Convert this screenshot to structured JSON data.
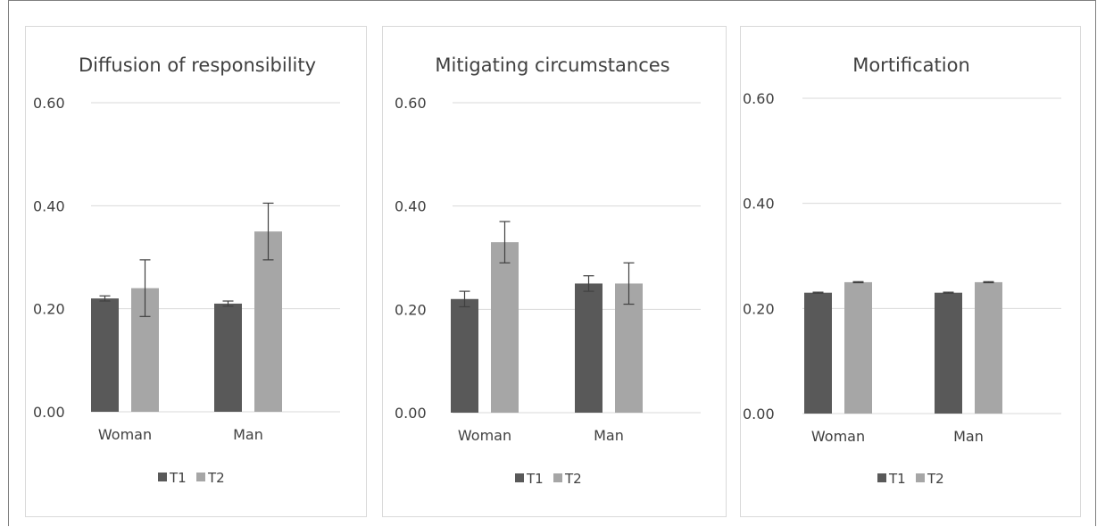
{
  "colors": {
    "T1": "#595959",
    "T2": "#a6a6a6",
    "grid": "#d9d9d9",
    "text": "#404040",
    "error": "#404040"
  },
  "chart_data": [
    {
      "type": "bar",
      "title": "Diffusion of responsibility",
      "categories": [
        "Woman",
        "Man"
      ],
      "ylim": [
        0,
        0.6
      ],
      "yticks": [
        "0.00",
        "0.20",
        "0.40",
        "0.60"
      ],
      "grid": true,
      "legend": "bottom",
      "series": [
        {
          "name": "T1",
          "values": [
            0.22,
            0.21
          ],
          "errors": [
            0.005,
            0.005
          ]
        },
        {
          "name": "T2",
          "values": [
            0.24,
            0.35
          ],
          "errors": [
            0.055,
            0.055
          ]
        }
      ]
    },
    {
      "type": "bar",
      "title": "Mitigating circumstances",
      "categories": [
        "Woman",
        "Man"
      ],
      "ylim": [
        0,
        0.6
      ],
      "yticks": [
        "0.00",
        "0.20",
        "0.40",
        "0.60"
      ],
      "grid": true,
      "legend": "bottom",
      "series": [
        {
          "name": "T1",
          "values": [
            0.22,
            0.25
          ],
          "errors": [
            0.015,
            0.015
          ]
        },
        {
          "name": "T2",
          "values": [
            0.33,
            0.25
          ],
          "errors": [
            0.04,
            0.04
          ]
        }
      ]
    },
    {
      "type": "bar",
      "title": "Mortification",
      "categories": [
        "Woman",
        "Man"
      ],
      "ylim": [
        0,
        0.6
      ],
      "yticks": [
        "0.00",
        "0.20",
        "0.40",
        "0.60"
      ],
      "grid": true,
      "legend": "bottom",
      "series": [
        {
          "name": "T1",
          "values": [
            0.23,
            0.23
          ],
          "errors": [
            0.001,
            0.001
          ]
        },
        {
          "name": "T2",
          "values": [
            0.25,
            0.25
          ],
          "errors": [
            0.001,
            0.001
          ]
        }
      ]
    }
  ]
}
